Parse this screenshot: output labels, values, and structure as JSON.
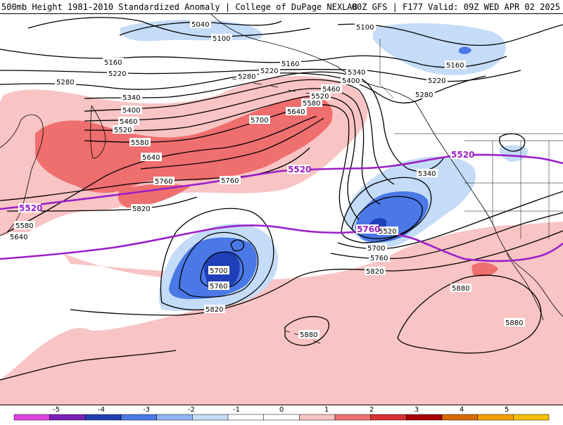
{
  "header": {
    "left": "500mb Height 1981-2010 Standardized Anomaly | College of DuPage NEXLAB",
    "right": "00Z GFS | F177 Valid: 09Z WED APR 02 2025"
  },
  "colors": {
    "pos1": "#f9c4c4",
    "pos2": "#ef6e6e",
    "neg1": "#c4dcf8",
    "neg2": "#4a78e6",
    "neg3": "#1f3fb8",
    "purple": "#9a1fc9"
  },
  "contour_labels": {
    "l5040": "5040",
    "l5100a": "5100",
    "l5100b": "5100",
    "l5160a": "5160",
    "l5160b": "5160",
    "l5160c": "5160",
    "l5220a": "5220",
    "l5220b": "5220",
    "l5220c": "5220",
    "l5280a": "5280",
    "l5280b": "5280",
    "l5280c": "5280",
    "l5340a": "5340",
    "l5340b": "5340",
    "l5340c": "5340",
    "l5400a": "5400",
    "l5400b": "5400",
    "l5460a": "5460",
    "l5460b": "5460",
    "l5520a": "5520",
    "l5520b": "5520",
    "l5520c": "5520",
    "l5580a": "5580",
    "l5580b": "5580",
    "l5580c": "5580",
    "l5640a": "5640",
    "l5640b": "5640",
    "l5640c": "5640",
    "l5700a": "5700",
    "l5700b": "5700",
    "l5700c": "5700",
    "l5760a": "5760",
    "l5760b": "5760",
    "l5760c": "5760",
    "l5760d": "5760",
    "l5820a": "5820",
    "l5820b": "5820",
    "l5820c": "5820",
    "l5880a": "5880",
    "l5880b": "5880",
    "l5880c": "5880"
  },
  "purple_labels": {
    "p1": "5520",
    "p2": "5520",
    "p3": "5520",
    "p4": "5760"
  },
  "colorbar": {
    "ticks": [
      "-5",
      "-4",
      "-3",
      "-2",
      "-1",
      "0",
      "1",
      "2",
      "3",
      "4",
      "5"
    ],
    "colors": [
      "#e040e0",
      "#7a1fb8",
      "#1f3fb8",
      "#4a78e6",
      "#8fb4f0",
      "#c4dcf8",
      "#ffffff",
      "#ffffff",
      "#f9c4c4",
      "#ef6e6e",
      "#d83030",
      "#a80000",
      "#d86a00",
      "#f5a000",
      "#f5c000"
    ]
  }
}
